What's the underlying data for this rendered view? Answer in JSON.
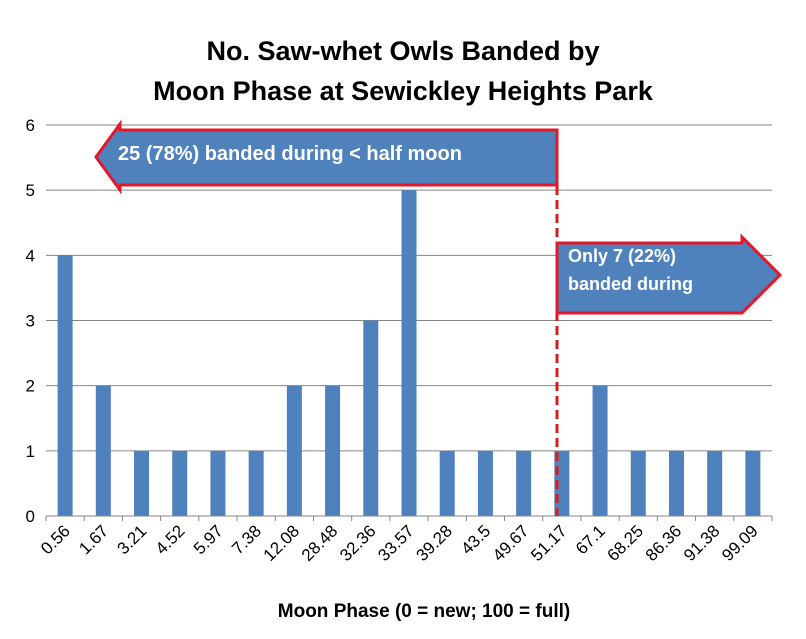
{
  "chart_data": {
    "type": "bar",
    "title_lines": [
      "No. Saw-whet Owls Banded by",
      "Moon Phase at Sewickley Heights Park"
    ],
    "xlabel": "Moon Phase (0 = new; 100 = full)",
    "ylabel": "",
    "categories": [
      "0.56",
      "1.67",
      "3.21",
      "4.52",
      "5.97",
      "7.38",
      "12.08",
      "28.48",
      "32.36",
      "33.57",
      "39.28",
      "43.5",
      "49.67",
      "51.17",
      "67.1",
      "68.25",
      "86.36",
      "91.38",
      "99.09"
    ],
    "values": [
      4,
      2,
      1,
      1,
      1,
      1,
      2,
      2,
      3,
      5,
      1,
      1,
      1,
      1,
      2,
      1,
      1,
      1,
      1
    ],
    "ylim": [
      0,
      6
    ],
    "yticks": [
      "0",
      "1",
      "2",
      "3",
      "4",
      "5",
      "6"
    ],
    "grid": true,
    "bar_color": "#4f81bd",
    "annotations": {
      "left_arrow": "25 (78%) banded during < half moon",
      "right_arrow_lines": [
        "Only 7 (22%)",
        "banded during"
      ],
      "arrow_fill": "#4f81bd",
      "arrow_border": "#e4182b",
      "divider_color": "#d21e1e"
    }
  }
}
